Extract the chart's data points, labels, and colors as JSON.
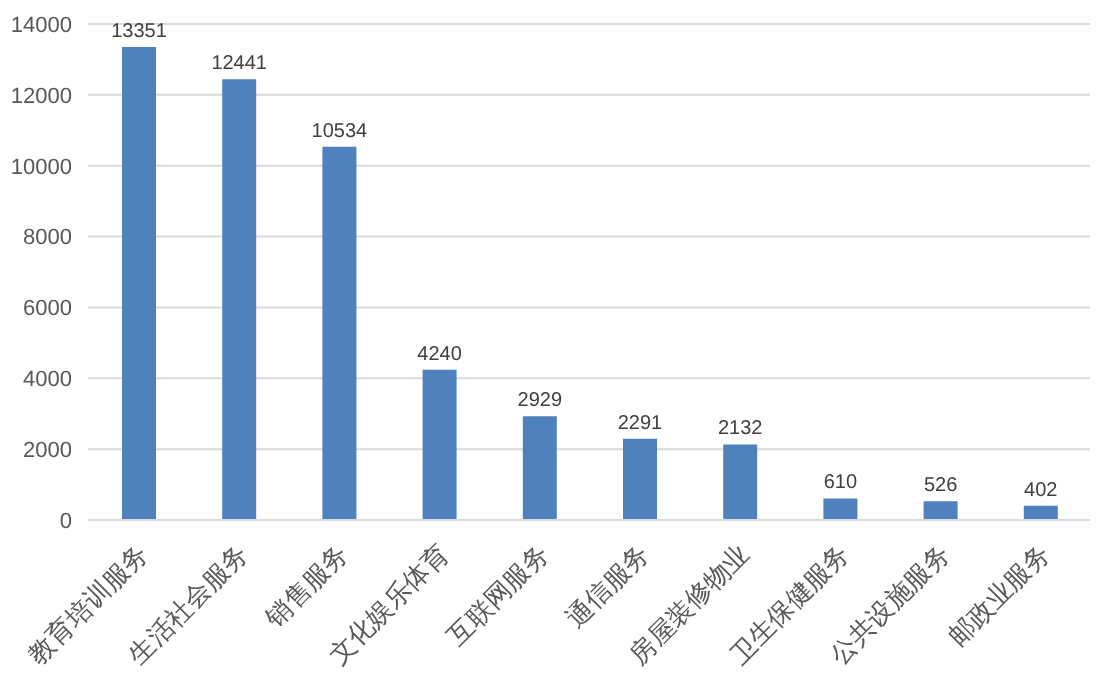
{
  "chart_data": {
    "type": "bar",
    "categories": [
      "教育培训服务",
      "生活社会服务",
      "销售服务",
      "文化娱乐体育",
      "互联网服务",
      "通信服务",
      "房屋装修物业",
      "卫生保健服务",
      "公共设施服务",
      "邮政业服务"
    ],
    "values": [
      13351,
      12441,
      10534,
      4240,
      2929,
      2291,
      2132,
      610,
      526,
      402
    ],
    "color": "#4f81bd",
    "ylim": [
      0,
      14000
    ],
    "yticks": [
      0,
      2000,
      4000,
      6000,
      8000,
      10000,
      12000,
      14000
    ],
    "grid": "y",
    "data_labels": true
  }
}
